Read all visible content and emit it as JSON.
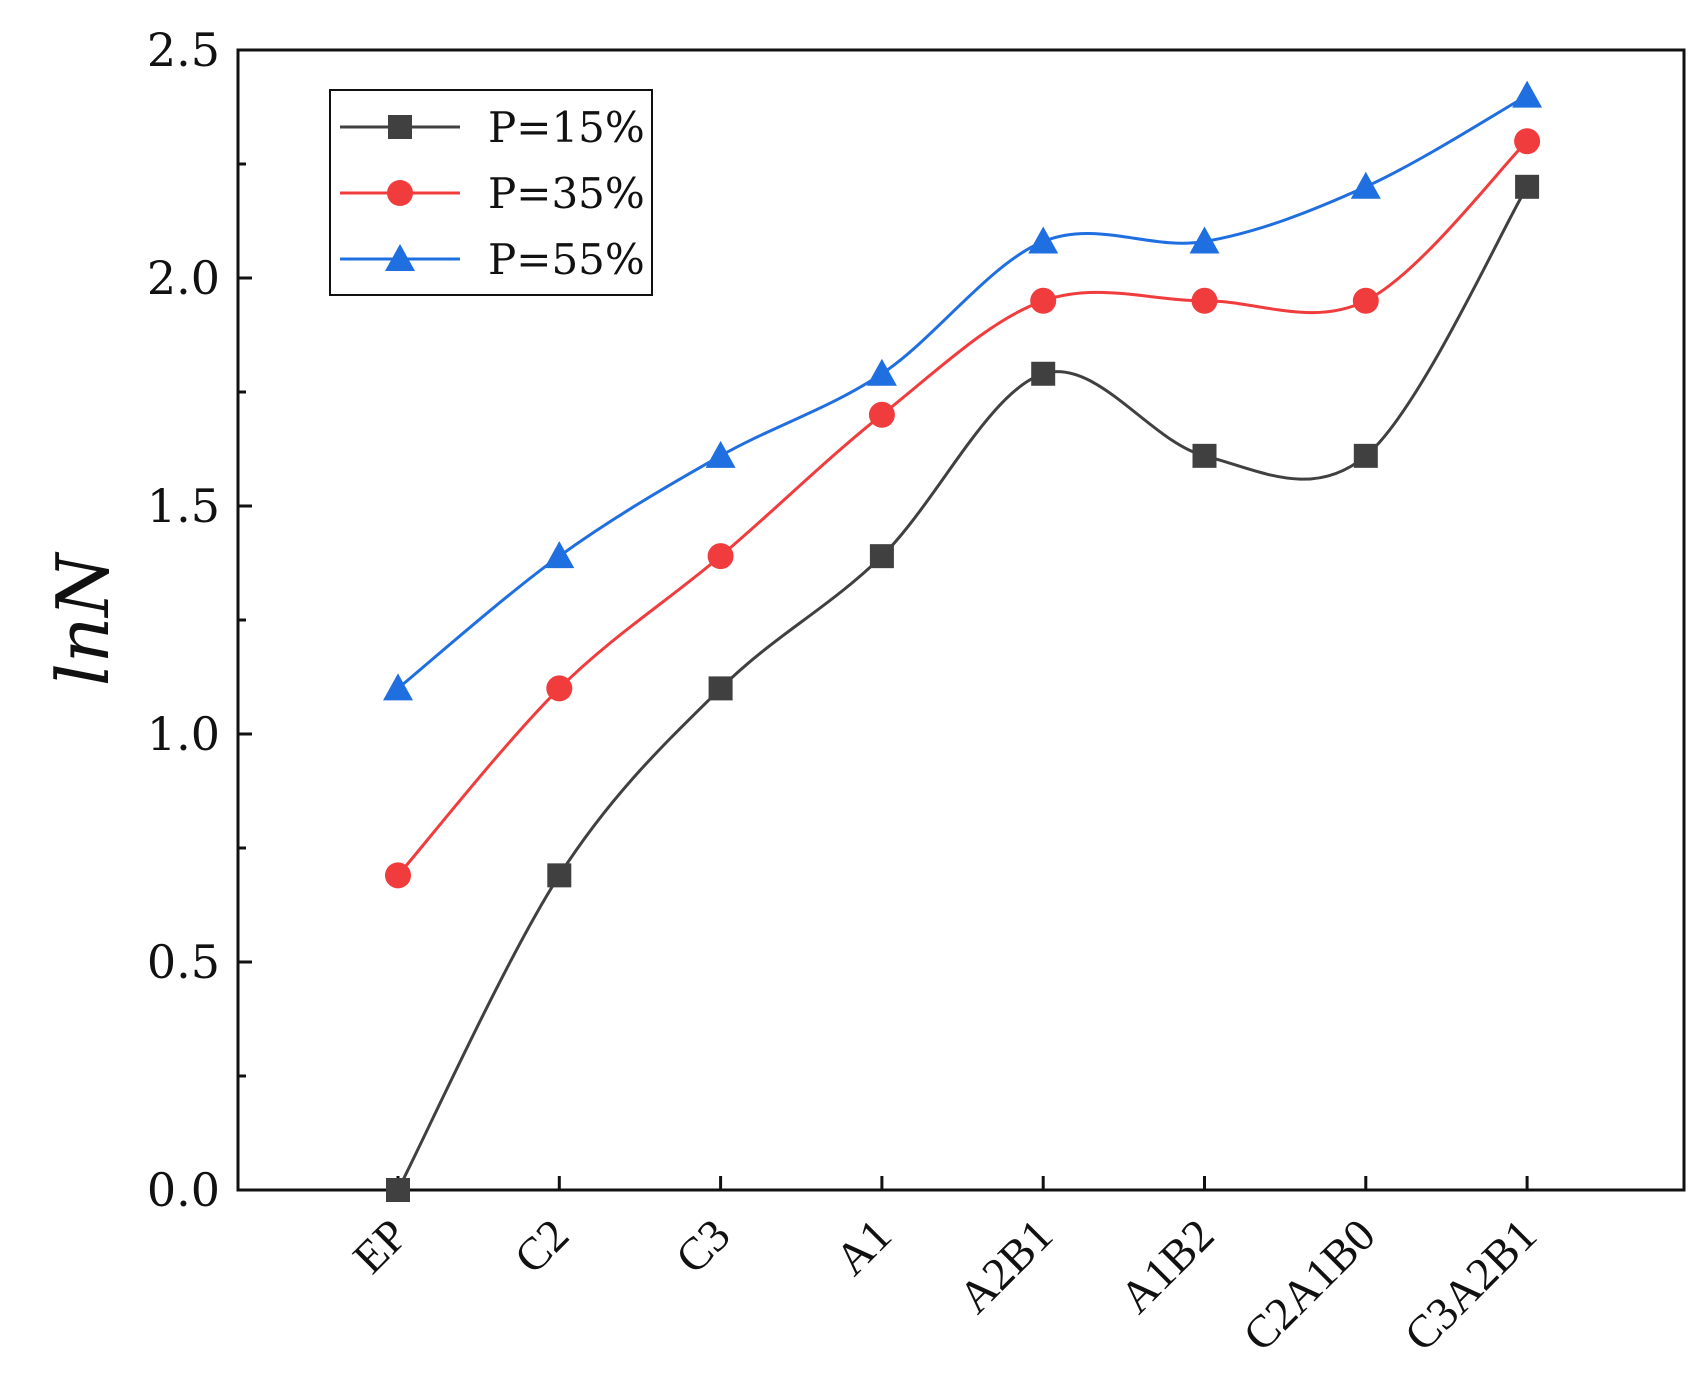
{
  "chart_data": {
    "type": "line",
    "title": "",
    "xlabel": "",
    "ylabel": "lnN",
    "ylim": [
      0,
      2.5
    ],
    "yticks": [
      "0.0",
      "0.5",
      "1.0",
      "1.5",
      "2.0",
      "2.5"
    ],
    "categories": [
      "EP",
      "C2",
      "C3",
      "A1",
      "A2B1",
      "A1B2",
      "C2A1B0",
      "C3A2B1"
    ],
    "legend_position": "top-left",
    "grid": false,
    "series": [
      {
        "name": "P=15%",
        "color": "#404040",
        "marker": "square",
        "values": [
          0.0,
          0.69,
          1.1,
          1.39,
          1.79,
          1.61,
          1.61,
          2.2
        ]
      },
      {
        "name": "P=35%",
        "color": "#f03c3c",
        "marker": "circle",
        "values": [
          0.69,
          1.1,
          1.39,
          1.7,
          1.95,
          1.95,
          1.95,
          2.3
        ]
      },
      {
        "name": "P=55%",
        "color": "#1f6fe0",
        "marker": "triangle",
        "values": [
          1.1,
          1.39,
          1.61,
          1.79,
          2.08,
          2.08,
          2.2,
          2.4
        ]
      }
    ]
  }
}
